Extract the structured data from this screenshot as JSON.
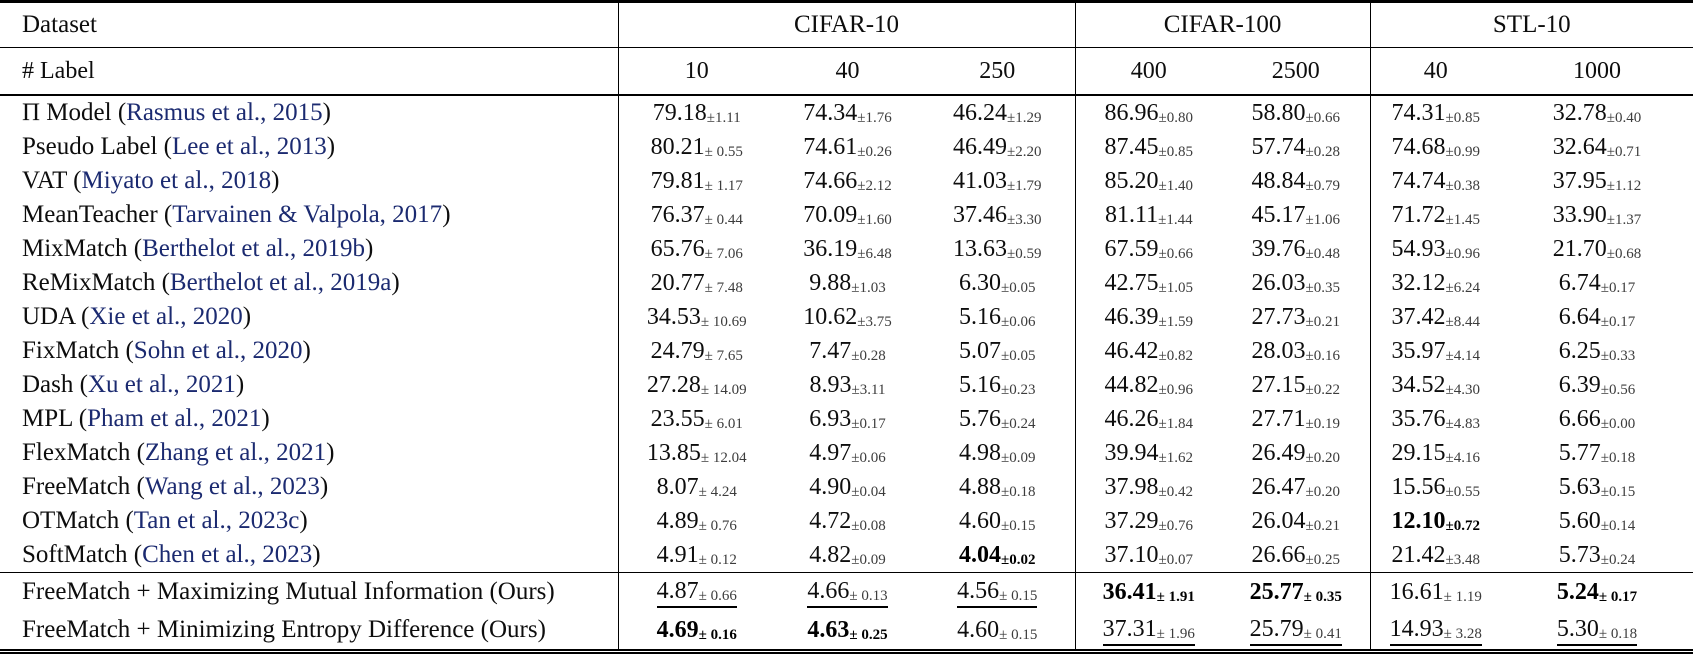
{
  "table": {
    "corner_label": "Dataset",
    "row2_label": "# Label",
    "citation_color": "#1b2a70",
    "groups": [
      {
        "label": "CIFAR-10",
        "cols": [
          "10",
          "40",
          "250"
        ]
      },
      {
        "label": "CIFAR-100",
        "cols": [
          "400",
          "2500"
        ]
      },
      {
        "label": "STL-10",
        "cols": [
          "40",
          "1000"
        ]
      }
    ],
    "methods": [
      {
        "name": "Π Model",
        "cite": "Rasmus et al., 2015",
        "cells": [
          [
            "79.18",
            "±1.11",
            ""
          ],
          [
            "74.34",
            "±1.76",
            ""
          ],
          [
            "46.24",
            "±1.29",
            ""
          ],
          [
            "86.96",
            "±0.80",
            ""
          ],
          [
            "58.80",
            "±0.66",
            ""
          ],
          [
            "74.31",
            "±0.85",
            ""
          ],
          [
            "32.78",
            "±0.40",
            ""
          ]
        ]
      },
      {
        "name": "Pseudo Label",
        "cite": "Lee et al., 2013",
        "cells": [
          [
            "80.21",
            "± 0.55",
            ""
          ],
          [
            "74.61",
            "±0.26",
            ""
          ],
          [
            "46.49",
            "±2.20",
            ""
          ],
          [
            "87.45",
            "±0.85",
            ""
          ],
          [
            "57.74",
            "±0.28",
            ""
          ],
          [
            "74.68",
            "±0.99",
            ""
          ],
          [
            "32.64",
            "±0.71",
            ""
          ]
        ]
      },
      {
        "name": "VAT",
        "cite": "Miyato et al., 2018",
        "cells": [
          [
            "79.81",
            "± 1.17",
            ""
          ],
          [
            "74.66",
            "±2.12",
            ""
          ],
          [
            "41.03",
            "±1.79",
            ""
          ],
          [
            "85.20",
            "±1.40",
            ""
          ],
          [
            "48.84",
            "±0.79",
            ""
          ],
          [
            "74.74",
            "±0.38",
            ""
          ],
          [
            "37.95",
            "±1.12",
            ""
          ]
        ]
      },
      {
        "name": "MeanTeacher",
        "cite": "Tarvainen & Valpola, 2017",
        "cells": [
          [
            "76.37",
            "± 0.44",
            ""
          ],
          [
            "70.09",
            "±1.60",
            ""
          ],
          [
            "37.46",
            "±3.30",
            ""
          ],
          [
            "81.11",
            "±1.44",
            ""
          ],
          [
            "45.17",
            "±1.06",
            ""
          ],
          [
            "71.72",
            "±1.45",
            ""
          ],
          [
            "33.90",
            "±1.37",
            ""
          ]
        ]
      },
      {
        "name": "MixMatch",
        "cite": "Berthelot et al., 2019b",
        "cells": [
          [
            "65.76",
            "± 7.06",
            ""
          ],
          [
            "36.19",
            "±6.48",
            ""
          ],
          [
            "13.63",
            "±0.59",
            ""
          ],
          [
            "67.59",
            "±0.66",
            ""
          ],
          [
            "39.76",
            "±0.48",
            ""
          ],
          [
            "54.93",
            "±0.96",
            ""
          ],
          [
            "21.70",
            "±0.68",
            ""
          ]
        ]
      },
      {
        "name": "ReMixMatch",
        "cite": "Berthelot et al., 2019a",
        "cells": [
          [
            "20.77",
            "± 7.48",
            ""
          ],
          [
            "9.88",
            "±1.03",
            ""
          ],
          [
            "6.30",
            "±0.05",
            ""
          ],
          [
            "42.75",
            "±1.05",
            ""
          ],
          [
            "26.03",
            "±0.35",
            ""
          ],
          [
            "32.12",
            "±6.24",
            ""
          ],
          [
            "6.74",
            "±0.17",
            ""
          ]
        ]
      },
      {
        "name": "UDA",
        "cite": "Xie et al., 2020",
        "cells": [
          [
            "34.53",
            "± 10.69",
            ""
          ],
          [
            "10.62",
            "±3.75",
            ""
          ],
          [
            "5.16",
            "±0.06",
            ""
          ],
          [
            "46.39",
            "±1.59",
            ""
          ],
          [
            "27.73",
            "±0.21",
            ""
          ],
          [
            "37.42",
            "±8.44",
            ""
          ],
          [
            "6.64",
            "±0.17",
            ""
          ]
        ]
      },
      {
        "name": "FixMatch",
        "cite": "Sohn et al., 2020",
        "cells": [
          [
            "24.79",
            "± 7.65",
            ""
          ],
          [
            "7.47",
            "±0.28",
            ""
          ],
          [
            "5.07",
            "±0.05",
            ""
          ],
          [
            "46.42",
            "±0.82",
            ""
          ],
          [
            "28.03",
            "±0.16",
            ""
          ],
          [
            "35.97",
            "±4.14",
            ""
          ],
          [
            "6.25",
            "±0.33",
            ""
          ]
        ]
      },
      {
        "name": "Dash",
        "cite": "Xu et al., 2021",
        "cells": [
          [
            "27.28",
            "± 14.09",
            ""
          ],
          [
            "8.93",
            "±3.11",
            ""
          ],
          [
            "5.16",
            "±0.23",
            ""
          ],
          [
            "44.82",
            "±0.96",
            ""
          ],
          [
            "27.15",
            "±0.22",
            ""
          ],
          [
            "34.52",
            "±4.30",
            ""
          ],
          [
            "6.39",
            "±0.56",
            ""
          ]
        ]
      },
      {
        "name": "MPL",
        "cite": "Pham et al., 2021",
        "cells": [
          [
            "23.55",
            "± 6.01",
            ""
          ],
          [
            "6.93",
            "±0.17",
            ""
          ],
          [
            "5.76",
            "±0.24",
            ""
          ],
          [
            "46.26",
            "±1.84",
            ""
          ],
          [
            "27.71",
            "±0.19",
            ""
          ],
          [
            "35.76",
            "±4.83",
            ""
          ],
          [
            "6.66",
            "±0.00",
            ""
          ]
        ]
      },
      {
        "name": "FlexMatch",
        "cite": "Zhang et al., 2021",
        "cells": [
          [
            "13.85",
            "± 12.04",
            ""
          ],
          [
            "4.97",
            "±0.06",
            ""
          ],
          [
            "4.98",
            "±0.09",
            ""
          ],
          [
            "39.94",
            "±1.62",
            ""
          ],
          [
            "26.49",
            "±0.20",
            ""
          ],
          [
            "29.15",
            "±4.16",
            ""
          ],
          [
            "5.77",
            "±0.18",
            ""
          ]
        ]
      },
      {
        "name": "FreeMatch",
        "cite": "Wang et al., 2023",
        "cells": [
          [
            "8.07",
            "± 4.24",
            ""
          ],
          [
            "4.90",
            "±0.04",
            ""
          ],
          [
            "4.88",
            "±0.18",
            ""
          ],
          [
            "37.98",
            "±0.42",
            ""
          ],
          [
            "26.47",
            "±0.20",
            ""
          ],
          [
            "15.56",
            "±0.55",
            ""
          ],
          [
            "5.63",
            "±0.15",
            ""
          ]
        ]
      },
      {
        "name": "OTMatch",
        "cite": "Tan et al., 2023c",
        "cells": [
          [
            "4.89",
            "± 0.76",
            ""
          ],
          [
            "4.72",
            "±0.08",
            ""
          ],
          [
            "4.60",
            "±0.15",
            ""
          ],
          [
            "37.29",
            "±0.76",
            ""
          ],
          [
            "26.04",
            "±0.21",
            ""
          ],
          [
            "12.10",
            "±0.72",
            "b"
          ],
          [
            "5.60",
            "±0.14",
            ""
          ]
        ]
      },
      {
        "name": "SoftMatch",
        "cite": "Chen et al., 2023",
        "cells": [
          [
            "4.91",
            "± 0.12",
            ""
          ],
          [
            "4.82",
            "±0.09",
            ""
          ],
          [
            "4.04",
            "±0.02",
            "b"
          ],
          [
            "37.10",
            "±0.07",
            ""
          ],
          [
            "26.66",
            "±0.25",
            ""
          ],
          [
            "21.42",
            "±3.48",
            ""
          ],
          [
            "5.73",
            "±0.24",
            ""
          ]
        ]
      }
    ],
    "ours": [
      {
        "name": "FreeMatch + Maximizing Mutual Information (Ours)",
        "cells": [
          [
            "4.87",
            "± 0.66",
            "u"
          ],
          [
            "4.66",
            "± 0.13",
            "u"
          ],
          [
            "4.56",
            "± 0.15",
            "u"
          ],
          [
            "36.41",
            "± 1.91",
            "b"
          ],
          [
            "25.77",
            "± 0.35",
            "b"
          ],
          [
            "16.61",
            "± 1.19",
            ""
          ],
          [
            "5.24",
            "± 0.17",
            "b"
          ]
        ]
      },
      {
        "name": "FreeMatch + Minimizing Entropy Difference (Ours)",
        "cells": [
          [
            "4.69",
            "± 0.16",
            "b"
          ],
          [
            "4.63",
            "± 0.25",
            "b"
          ],
          [
            "4.60",
            "± 0.15",
            ""
          ],
          [
            "37.31",
            "± 1.96",
            "u"
          ],
          [
            "25.79",
            "± 0.41",
            "u"
          ],
          [
            "14.93",
            "± 3.28",
            "u"
          ],
          [
            "5.30",
            "± 0.18",
            "u"
          ]
        ]
      }
    ]
  }
}
